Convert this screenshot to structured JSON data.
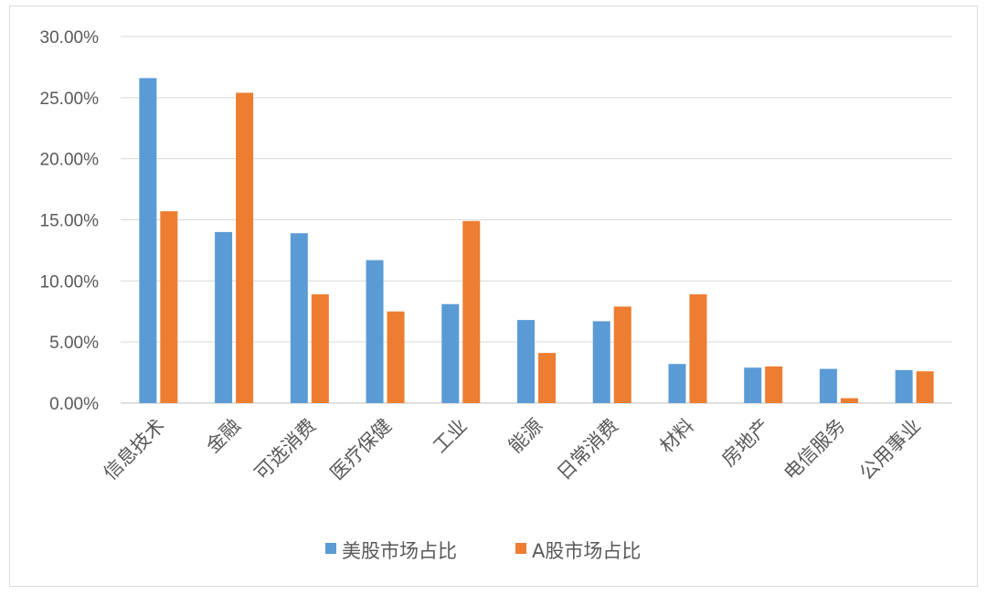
{
  "chart_data": {
    "type": "bar",
    "title": "",
    "xlabel": "",
    "ylabel": "",
    "categories": [
      "信息技术",
      "金融",
      "可选消费",
      "医疗保健",
      "工业",
      "能源",
      "日常消费",
      "材料",
      "房地产",
      "电信服务",
      "公用事业"
    ],
    "series": [
      {
        "name": "美股市场占比",
        "color": "#5b9bd5",
        "values": [
          26.6,
          14.0,
          13.9,
          11.7,
          8.1,
          6.8,
          6.7,
          3.2,
          2.9,
          2.8,
          2.7
        ]
      },
      {
        "name": "A股市场占比",
        "color": "#ed7d31",
        "values": [
          15.7,
          25.4,
          8.9,
          7.5,
          14.9,
          4.1,
          7.9,
          8.9,
          3.0,
          0.4,
          2.6
        ]
      }
    ],
    "ylim": [
      0,
      30
    ],
    "yticks": [
      "0.00%",
      "5.00%",
      "10.00%",
      "15.00%",
      "20.00%",
      "25.00%",
      "30.00%"
    ],
    "ytick_values": [
      0,
      5,
      10,
      15,
      20,
      25,
      30
    ],
    "grid": true,
    "legend_position": "bottom",
    "gridline_color": "#d9d9d9",
    "axis_color": "#bfbfbf"
  }
}
